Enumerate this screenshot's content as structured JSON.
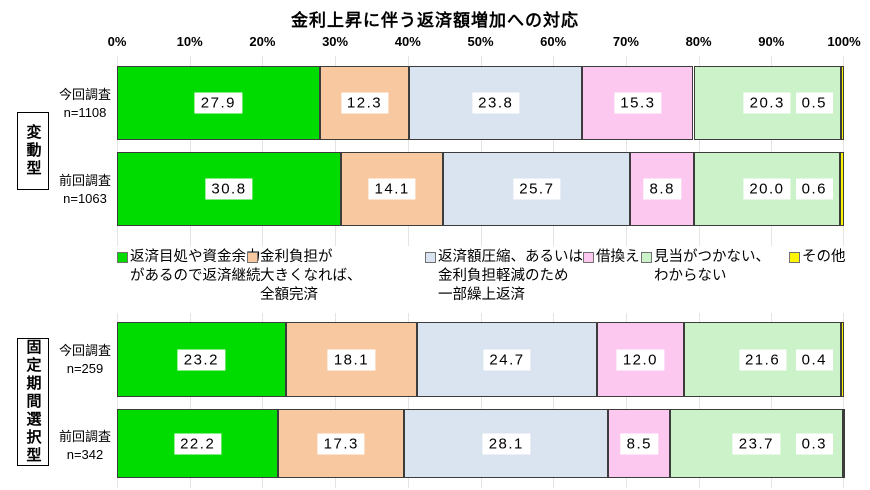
{
  "title": "金利上昇に伴う返済額増加への対応",
  "axis": {
    "ticks": [
      "0%",
      "10%",
      "20%",
      "30%",
      "40%",
      "50%",
      "60%",
      "70%",
      "80%",
      "90%",
      "100%"
    ]
  },
  "legend": [
    {
      "label": "返済目処や資金余力\nがあるので返済継続",
      "color": "#00DC00"
    },
    {
      "label": "金利負担が\n大きくなれば、\n全額完済",
      "color": "#F8C9A0"
    },
    {
      "label": "返済額圧縮、あるいは\n金利負担軽減のため\n一部繰上返済",
      "color": "#DAE3F0"
    },
    {
      "label": "借換え",
      "color": "#FCC8EF"
    },
    {
      "label": "見当がつかない、\nわからない",
      "color": "#CBF2C9"
    },
    {
      "label": "その他",
      "color": "#FFF500"
    }
  ],
  "chart_data": {
    "type": "bar",
    "stacked": true,
    "orientation": "horizontal",
    "unit": "%",
    "xlim": [
      0,
      100
    ],
    "grid": true,
    "title": "金利上昇に伴う返済額増加への対応",
    "series_names": [
      "返済目処や資金余力があるので返済継続",
      "金利負担が大きくなれば、全額完済",
      "返済額圧縮、あるいは金利負担軽減のため一部繰上返済",
      "借換え",
      "見当がつかない、わからない",
      "その他"
    ],
    "groups": [
      {
        "group_label": "変動型",
        "rows": [
          {
            "label": "今回調査",
            "n": "n=1108",
            "values": [
              27.9,
              12.3,
              23.8,
              15.3,
              20.3,
              0.5
            ]
          },
          {
            "label": "前回調査",
            "n": "n=1063",
            "values": [
              30.8,
              14.1,
              25.7,
              8.8,
              20.0,
              0.6
            ]
          }
        ]
      },
      {
        "group_label": "固定期間選択型",
        "rows": [
          {
            "label": "今回調査",
            "n": "n=259",
            "values": [
              23.2,
              18.1,
              24.7,
              12.0,
              21.6,
              0.4
            ]
          },
          {
            "label": "前回調査",
            "n": "n=342",
            "values": [
              22.2,
              17.3,
              28.1,
              8.5,
              23.7,
              0.3
            ]
          }
        ]
      }
    ]
  }
}
